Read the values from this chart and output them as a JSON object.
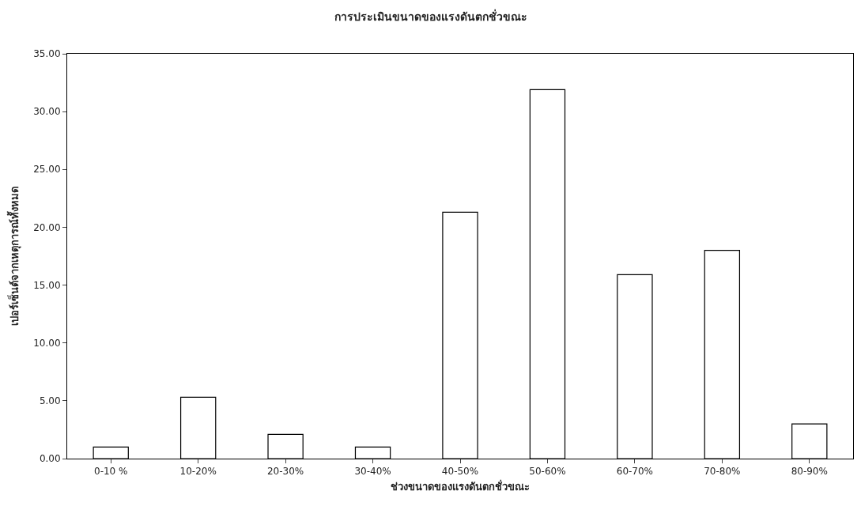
{
  "chart_data": {
    "type": "bar",
    "title": "การประเมินขนาดของแรงดันตกชั่วขณะ",
    "xlabel": "ช่วงขนาดของแรงดันตกชั่วขณะ",
    "ylabel": "เปอร์เซ็นต์จากเหตุการณ์ทั้งหมด",
    "categories": [
      "0-10 %",
      "10-20%",
      "20-30%",
      "30-40%",
      "40-50%",
      "50-60%",
      "60-70%",
      "70-80%",
      "80-90%"
    ],
    "values": [
      1.0,
      5.3,
      2.1,
      1.0,
      21.3,
      31.9,
      15.9,
      18.0,
      3.0
    ],
    "color": "#ffffff",
    "ylim": [
      0,
      35
    ],
    "yticks": [
      {
        "value": 0,
        "label": "0.00"
      },
      {
        "value": 5,
        "label": "5.00"
      },
      {
        "value": 10,
        "label": "10.00"
      },
      {
        "value": 15,
        "label": "15.00"
      },
      {
        "value": 20,
        "label": "20.00"
      },
      {
        "value": 25,
        "label": "25.00"
      },
      {
        "value": 30,
        "label": "30.00"
      },
      {
        "value": 35,
        "label": "35.00"
      }
    ],
    "grid": false
  }
}
